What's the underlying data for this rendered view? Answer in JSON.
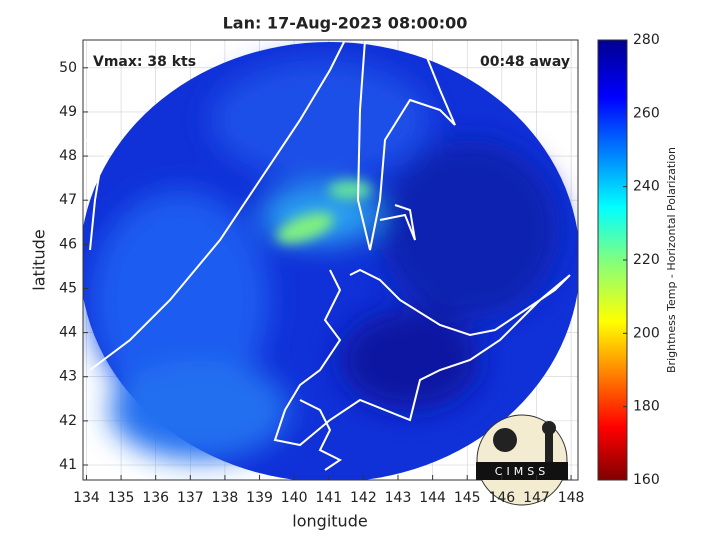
{
  "chart_data": {
    "type": "image",
    "title": "Lan: 17-Aug-2023 08:00:00",
    "annotations": [
      "Vmax: 38 kts",
      "00:48 away"
    ],
    "logo": "CIMSS",
    "x_label": "longitude",
    "y_label": "latitude",
    "xlim": [
      133.9,
      148.2
    ],
    "xticks": [
      134,
      135,
      136,
      137,
      138,
      139,
      140,
      141,
      142,
      143,
      144,
      145,
      146,
      147,
      148
    ],
    "ylim": [
      40.66,
      50.63
    ],
    "yticks": [
      41,
      42,
      43,
      44,
      45,
      46,
      47,
      48,
      49,
      50
    ],
    "grid": true,
    "colorbar": {
      "label": "Brightness Temp - Horizontal Polarization",
      "lim": [
        160,
        280
      ],
      "ticks": [
        160,
        180,
        200,
        220,
        240,
        260,
        280
      ]
    }
  }
}
